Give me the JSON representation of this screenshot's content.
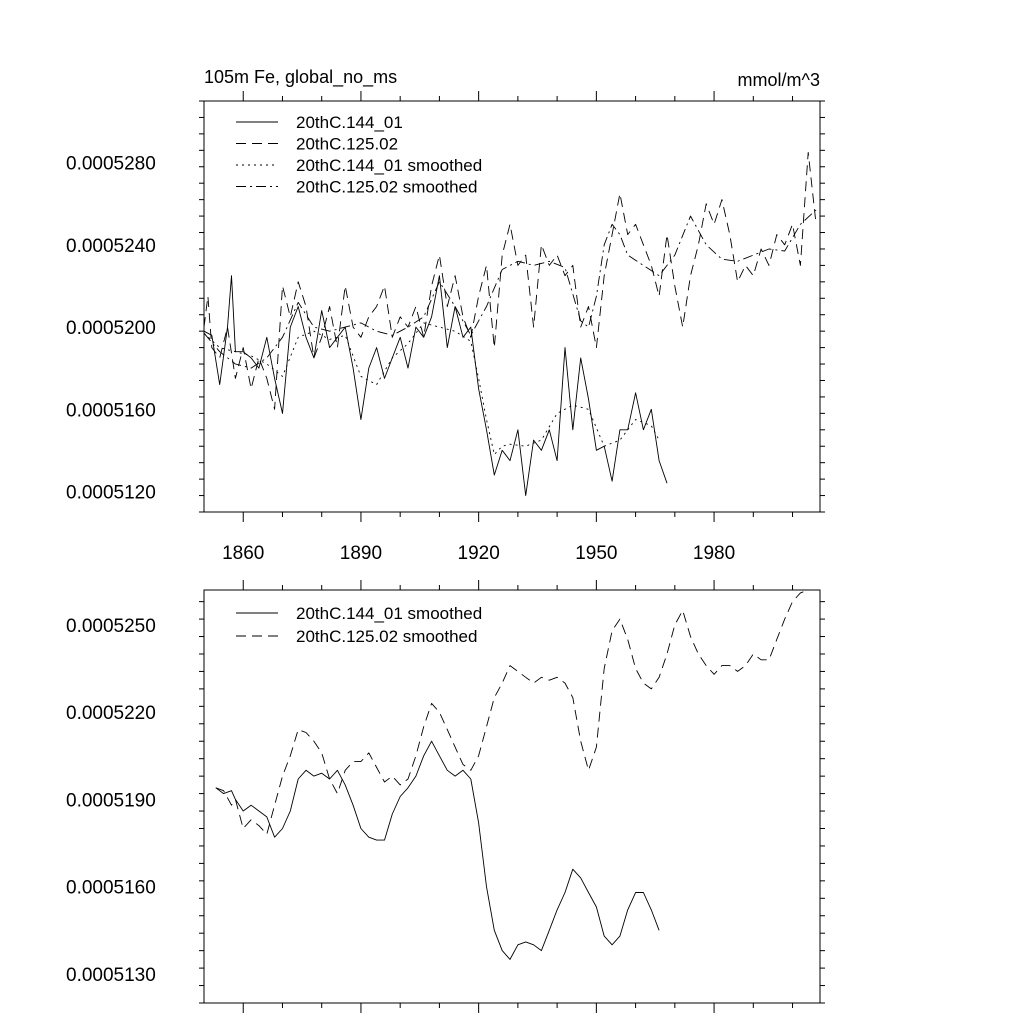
{
  "chart_data": [
    {
      "type": "line",
      "title_left": "105m Fe, global_no_ms",
      "title_right": "mmol/m^3",
      "xlabel": "",
      "ylabel": "",
      "xlim": [
        1850,
        2007
      ],
      "ylim": [
        0.000511,
        0.000531
      ],
      "x_ticks": [
        1860,
        1890,
        1920,
        1950,
        1980
      ],
      "x_tick_labels": [
        "1860",
        "1890",
        "1920",
        "1950",
        "1980"
      ],
      "y_ticks": [
        0.000512,
        0.000516,
        0.00052,
        0.000524,
        0.000528
      ],
      "y_tick_labels": [
        "0.0005120",
        "0.0005160",
        "0.0005200",
        "0.0005240",
        "0.0005280"
      ],
      "legend": [
        "20thC.144_01",
        "20thC.125.02",
        "20thC.144_01 smoothed",
        "20thC.125.02 smoothed"
      ],
      "series": [
        {
          "name": "20thC.144_01",
          "style": "solid",
          "x": [
            1850,
            1852,
            1854,
            1856,
            1857,
            1858,
            1860,
            1862,
            1864,
            1866,
            1868,
            1870,
            1872,
            1874,
            1876,
            1878,
            1880,
            1882,
            1884,
            1886,
            1888,
            1890,
            1892,
            1894,
            1896,
            1898,
            1900,
            1902,
            1904,
            1906,
            1908,
            1910,
            1912,
            1914,
            1916,
            1918,
            1920,
            1922,
            1924,
            1926,
            1928,
            1930,
            1932,
            1934,
            1936,
            1938,
            1940,
            1942,
            1944,
            1946,
            1948,
            1950,
            1952,
            1954,
            1956,
            1958,
            1960,
            1962,
            1964,
            1966,
            1968
          ],
          "values": [
            0.0005198,
            0.0005196,
            0.0005172,
            0.00052,
            0.0005225,
            0.0005188,
            0.0005188,
            0.0005185,
            0.000518,
            0.0005195,
            0.0005175,
            0.0005158,
            0.00052,
            0.000521,
            0.0005195,
            0.0005185,
            0.0005208,
            0.000519,
            0.0005195,
            0.00052,
            0.000518,
            0.0005155,
            0.000518,
            0.000519,
            0.0005175,
            0.0005185,
            0.0005195,
            0.000518,
            0.00052,
            0.0005195,
            0.0005205,
            0.0005225,
            0.000519,
            0.000521,
            0.0005195,
            0.00052,
            0.000517,
            0.000515,
            0.0005128,
            0.000514,
            0.0005135,
            0.000515,
            0.0005118,
            0.0005145,
            0.000514,
            0.000515,
            0.0005135,
            0.000519,
            0.000515,
            0.0005185,
            0.0005165,
            0.000514,
            0.0005142,
            0.0005125,
            0.000515,
            0.000515,
            0.0005168,
            0.000515,
            0.000516,
            0.0005135,
            0.0005124
          ]
        },
        {
          "name": "20thC.125.02",
          "style": "dashed",
          "x": [
            1850,
            1851,
            1852,
            1854,
            1856,
            1858,
            1860,
            1862,
            1864,
            1866,
            1868,
            1870,
            1872,
            1874,
            1876,
            1878,
            1880,
            1882,
            1884,
            1886,
            1888,
            1890,
            1892,
            1894,
            1896,
            1898,
            1900,
            1902,
            1904,
            1906,
            1908,
            1910,
            1912,
            1914,
            1916,
            1918,
            1920,
            1922,
            1924,
            1926,
            1928,
            1930,
            1932,
            1934,
            1936,
            1938,
            1940,
            1942,
            1944,
            1946,
            1948,
            1950,
            1952,
            1954,
            1956,
            1958,
            1960,
            1962,
            1964,
            1966,
            1968,
            1970,
            1972,
            1974,
            1976,
            1978,
            1980,
            1982,
            1984,
            1986,
            1988,
            1990,
            1992,
            1994,
            1996,
            1998,
            2000,
            2002,
            2004,
            2006
          ],
          "values": [
            0.00052,
            0.0005215,
            0.000519,
            0.0005185,
            0.00052,
            0.0005175,
            0.000519,
            0.000517,
            0.0005185,
            0.0005175,
            0.000516,
            0.000522,
            0.0005205,
            0.0005222,
            0.000521,
            0.0005185,
            0.0005195,
            0.000521,
            0.000519,
            0.000522,
            0.00052,
            0.0005195,
            0.0005205,
            0.000521,
            0.000522,
            0.0005195,
            0.0005205,
            0.00052,
            0.000521,
            0.0005195,
            0.000522,
            0.0005235,
            0.000521,
            0.0005225,
            0.0005205,
            0.0005195,
            0.0005215,
            0.000523,
            0.000519,
            0.0005235,
            0.000525,
            0.000523,
            0.0005235,
            0.00052,
            0.000524,
            0.000523,
            0.0005235,
            0.0005225,
            0.000523,
            0.00052,
            0.000521,
            0.000519,
            0.0005225,
            0.0005245,
            0.0005265,
            0.0005245,
            0.000525,
            0.000524,
            0.000523,
            0.0005215,
            0.0005245,
            0.000522,
            0.00052,
            0.0005225,
            0.000524,
            0.000526,
            0.000525,
            0.0005262,
            0.0005245,
            0.0005222,
            0.000523,
            0.0005225,
            0.0005238,
            0.000523,
            0.0005245,
            0.000524,
            0.000525,
            0.000523,
            0.0005285,
            0.000525
          ]
        },
        {
          "name": "20thC.144_01 smoothed",
          "style": "dotted",
          "x": [
            1850,
            1854,
            1858,
            1862,
            1866,
            1870,
            1874,
            1878,
            1882,
            1886,
            1890,
            1894,
            1898,
            1902,
            1906,
            1910,
            1914,
            1918,
            1920,
            1922,
            1924,
            1926,
            1928,
            1932,
            1936,
            1940,
            1944,
            1948,
            1952,
            1956,
            1960,
            1964,
            1966
          ],
          "values": [
            0.0005197,
            0.000519,
            0.0005188,
            0.0005186,
            0.0005182,
            0.0005176,
            0.0005195,
            0.0005198,
            0.0005194,
            0.0005196,
            0.0005176,
            0.0005172,
            0.0005185,
            0.0005192,
            0.0005202,
            0.00052,
            0.0005198,
            0.0005193,
            0.0005175,
            0.0005155,
            0.0005138,
            0.0005142,
            0.0005143,
            0.0005142,
            0.0005145,
            0.0005158,
            0.0005162,
            0.000516,
            0.0005142,
            0.0005145,
            0.0005155,
            0.0005152,
            0.0005145
          ]
        },
        {
          "name": "20thC.125.02 smoothed",
          "style": "dashdot",
          "x": [
            1850,
            1854,
            1858,
            1862,
            1866,
            1870,
            1874,
            1878,
            1882,
            1886,
            1890,
            1894,
            1898,
            1902,
            1906,
            1910,
            1914,
            1918,
            1922,
            1926,
            1930,
            1934,
            1938,
            1942,
            1946,
            1948,
            1950,
            1952,
            1954,
            1956,
            1958,
            1962,
            1966,
            1970,
            1974,
            1978,
            1982,
            1986,
            1990,
            1994,
            1998,
            2002,
            2006
          ],
          "values": [
            0.0005197,
            0.0005188,
            0.0005182,
            0.000518,
            0.0005185,
            0.0005195,
            0.0005212,
            0.00052,
            0.0005198,
            0.00052,
            0.0005202,
            0.0005198,
            0.0005196,
            0.00052,
            0.0005205,
            0.0005222,
            0.000521,
            0.0005196,
            0.000521,
            0.0005228,
            0.0005232,
            0.000523,
            0.0005232,
            0.0005229,
            0.0005203,
            0.00052,
            0.0005215,
            0.000524,
            0.000525,
            0.0005245,
            0.0005235,
            0.000523,
            0.0005225,
            0.0005235,
            0.0005254,
            0.000524,
            0.0005233,
            0.0005232,
            0.0005235,
            0.0005238,
            0.0005237,
            0.000525,
            0.0005257
          ]
        }
      ]
    },
    {
      "type": "line",
      "title_left": "",
      "title_right": "",
      "xlabel": "",
      "ylabel": "",
      "xlim": [
        1850,
        2007
      ],
      "ylim": [
        0.000512,
        0.0005262
      ],
      "x_ticks": [
        1860,
        1890,
        1920,
        1950,
        1980
      ],
      "y_ticks": [
        0.000513,
        0.000516,
        0.000519,
        0.000522,
        0.000525
      ],
      "y_tick_labels": [
        "0.0005130",
        "0.0005160",
        "0.0005190",
        "0.0005220",
        "0.0005250"
      ],
      "legend": [
        "20thC.144_01 smoothed",
        "20thC.125.02 smoothed"
      ],
      "series": [
        {
          "name": "20thC.144_01 smoothed",
          "style": "solid",
          "x": [
            1853,
            1855,
            1857,
            1858,
            1860,
            1862,
            1864,
            1866,
            1868,
            1870,
            1872,
            1874,
            1876,
            1878,
            1880,
            1882,
            1884,
            1886,
            1888,
            1890,
            1892,
            1894,
            1896,
            1898,
            1900,
            1902,
            1904,
            1906,
            1908,
            1910,
            1912,
            1914,
            1916,
            1918,
            1920,
            1922,
            1924,
            1926,
            1928,
            1930,
            1932,
            1934,
            1936,
            1938,
            1940,
            1942,
            1944,
            1946,
            1948,
            1950,
            1952,
            1954,
            1956,
            1958,
            1960,
            1962,
            1964,
            1966
          ],
          "values": [
            0.0005194,
            0.0005192,
            0.0005193,
            0.000519,
            0.0005186,
            0.0005188,
            0.0005186,
            0.0005184,
            0.0005177,
            0.000518,
            0.0005186,
            0.0005197,
            0.00052,
            0.0005198,
            0.0005199,
            0.0005197,
            0.00052,
            0.0005195,
            0.0005188,
            0.000518,
            0.0005177,
            0.0005176,
            0.0005176,
            0.0005185,
            0.0005191,
            0.0005194,
            0.0005198,
            0.0005205,
            0.000521,
            0.0005205,
            0.00052,
            0.0005198,
            0.00052,
            0.0005197,
            0.0005182,
            0.000516,
            0.0005145,
            0.0005138,
            0.0005135,
            0.000514,
            0.0005141,
            0.000514,
            0.0005138,
            0.0005145,
            0.0005152,
            0.0005158,
            0.0005166,
            0.0005163,
            0.0005158,
            0.0005153,
            0.0005143,
            0.000514,
            0.0005143,
            0.0005152,
            0.0005158,
            0.0005158,
            0.0005152,
            0.0005145
          ]
        },
        {
          "name": "20thC.125.02 smoothed",
          "style": "dashed",
          "x": [
            1853,
            1855,
            1857,
            1858,
            1860,
            1862,
            1864,
            1866,
            1868,
            1870,
            1872,
            1874,
            1876,
            1878,
            1880,
            1882,
            1884,
            1886,
            1888,
            1890,
            1892,
            1894,
            1896,
            1898,
            1900,
            1902,
            1904,
            1906,
            1908,
            1910,
            1912,
            1914,
            1916,
            1918,
            1920,
            1922,
            1924,
            1926,
            1928,
            1930,
            1932,
            1934,
            1936,
            1938,
            1940,
            1942,
            1944,
            1946,
            1948,
            1950,
            1952,
            1954,
            1956,
            1958,
            1960,
            1962,
            1964,
            1966,
            1968,
            1970,
            1972,
            1974,
            1976,
            1978,
            1980,
            1982,
            1984,
            1986,
            1988,
            1990,
            1992,
            1994,
            1996,
            1998,
            2000,
            2002,
            2004
          ],
          "values": [
            0.0005194,
            0.0005193,
            0.0005188,
            0.000519,
            0.000518,
            0.0005183,
            0.0005181,
            0.0005178,
            0.0005188,
            0.0005198,
            0.0005205,
            0.0005214,
            0.0005213,
            0.000521,
            0.0005206,
            0.0005197,
            0.0005192,
            0.00052,
            0.0005203,
            0.0005203,
            0.0005206,
            0.0005201,
            0.0005196,
            0.0005198,
            0.0005195,
            0.0005197,
            0.0005205,
            0.0005215,
            0.0005223,
            0.000522,
            0.0005214,
            0.0005208,
            0.0005202,
            0.00052,
            0.0005205,
            0.0005215,
            0.0005225,
            0.000523,
            0.0005236,
            0.0005234,
            0.0005232,
            0.000523,
            0.0005232,
            0.0005231,
            0.0005232,
            0.000523,
            0.0005225,
            0.000521,
            0.00052,
            0.0005208,
            0.0005235,
            0.0005248,
            0.0005252,
            0.0005245,
            0.0005235,
            0.000523,
            0.0005228,
            0.0005232,
            0.000524,
            0.000525,
            0.0005255,
            0.0005246,
            0.000524,
            0.0005236,
            0.0005233,
            0.0005236,
            0.0005236,
            0.0005234,
            0.0005236,
            0.000524,
            0.0005238,
            0.0005238,
            0.0005245,
            0.0005252,
            0.0005258,
            0.0005261,
            0.0005262
          ]
        }
      ]
    }
  ]
}
